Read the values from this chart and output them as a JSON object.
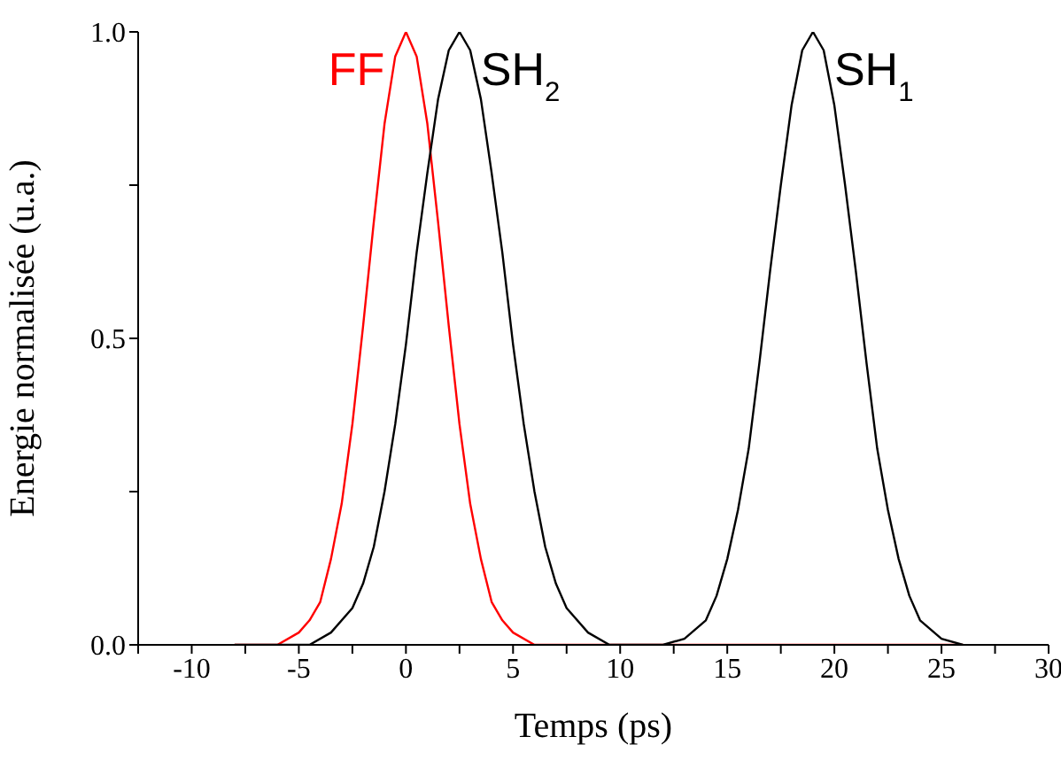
{
  "chart_data": {
    "type": "line",
    "xlabel": "Temps (ps)",
    "ylabel": "Energie normalisée (u.a.)",
    "xlim": [
      -12.5,
      30
    ],
    "xticks": [
      {
        "value": -12.5,
        "label": null
      },
      -10,
      {
        "value": -7.5,
        "label": null
      },
      -5,
      {
        "value": -2.5,
        "label": null
      },
      0,
      {
        "value": 2.5,
        "label": null
      },
      5,
      {
        "value": 7.5,
        "label": null
      },
      10,
      {
        "value": 12.5,
        "label": null
      },
      15,
      {
        "value": 17.5,
        "label": null
      },
      20,
      {
        "value": 22.5,
        "label": null
      },
      25,
      {
        "value": 27.5,
        "label": null
      },
      30
    ],
    "ylim": [
      0,
      1
    ],
    "yticks": [
      {
        "value": 0,
        "label": "0.0"
      },
      {
        "value": 0.25,
        "label": null
      },
      0.5,
      {
        "value": 0.75,
        "label": null
      },
      {
        "value": 1,
        "label": "1.0"
      }
    ],
    "grid": false,
    "annotations": [
      {
        "text": "SH$_{2}$",
        "x": 2.5,
        "y": 1
      },
      {
        "text": "SH$_{1}$",
        "x": 19,
        "y": 1
      }
    ],
    "series": [
      {
        "name": "FF",
        "color": "#ff0000",
        "x": [
          -8,
          -6,
          -5,
          -4.5,
          -4,
          -3.5,
          -3,
          -2.5,
          -2,
          -1.5,
          -1,
          -0.5,
          0,
          0.5,
          1,
          1.5,
          2,
          2.5,
          3,
          3.5,
          4,
          4.5,
          5,
          6,
          8,
          26
        ],
        "values": [
          0,
          0,
          0.02,
          0.04,
          0.07,
          0.14,
          0.23,
          0.36,
          0.52,
          0.69,
          0.85,
          0.96,
          1,
          0.96,
          0.85,
          0.69,
          0.52,
          0.36,
          0.23,
          0.14,
          0.07,
          0.04,
          0.02,
          0,
          0,
          0
        ]
      },
      {
        "color": "#000000",
        "x": [
          -8,
          -4.5,
          -3.5,
          -2.5,
          -2,
          -1.5,
          -1,
          -0.5,
          0,
          0.5,
          1,
          1.5,
          2,
          2.5,
          3,
          3.5,
          4,
          4.5,
          5,
          5.5,
          6,
          6.5,
          7,
          7.5,
          8.5,
          9.5,
          11,
          12,
          13,
          14,
          14.5,
          15,
          15.5,
          16,
          16.5,
          17,
          17.5,
          18,
          18.5,
          19,
          19.5,
          20,
          20.5,
          21,
          21.5,
          22,
          22.5,
          23,
          23.5,
          24,
          25,
          26
        ],
        "values": [
          0,
          0,
          0.02,
          0.06,
          0.1,
          0.16,
          0.25,
          0.36,
          0.49,
          0.64,
          0.77,
          0.89,
          0.97,
          1,
          0.97,
          0.89,
          0.77,
          0.64,
          0.49,
          0.36,
          0.25,
          0.16,
          0.1,
          0.06,
          0.02,
          0,
          0,
          0,
          0.01,
          0.04,
          0.08,
          0.14,
          0.22,
          0.32,
          0.46,
          0.61,
          0.75,
          0.88,
          0.97,
          1,
          0.97,
          0.88,
          0.75,
          0.61,
          0.46,
          0.32,
          0.22,
          0.14,
          0.08,
          0.04,
          0.01,
          0
        ]
      }
    ]
  }
}
